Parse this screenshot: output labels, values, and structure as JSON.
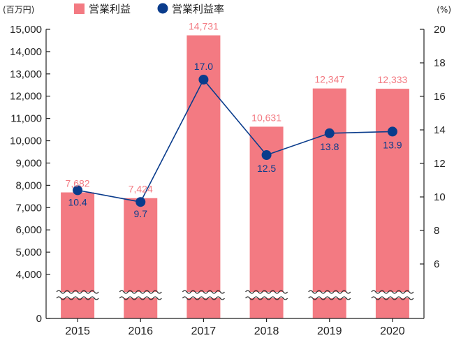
{
  "chart_data": {
    "type": "bar",
    "categories": [
      "2015",
      "2016",
      "2017",
      "2018",
      "2019",
      "2020"
    ],
    "series": [
      {
        "name": "営業利益",
        "type": "bar",
        "axis": "left",
        "values": [
          7682,
          7424,
          14731,
          10631,
          12347,
          12333
        ],
        "labels": [
          "7,682",
          "7,424",
          "14,731",
          "10,631",
          "12,347",
          "12,333"
        ]
      },
      {
        "name": "営業利益率",
        "type": "line",
        "axis": "right",
        "values": [
          10.4,
          9.7,
          17.0,
          12.5,
          13.8,
          13.9
        ],
        "labels": [
          "10.4",
          "9.7",
          "17.0",
          "12.5",
          "13.8",
          "13.9"
        ]
      }
    ],
    "y_left": {
      "unit": "(百万円)",
      "ticks": [
        0,
        4000,
        5000,
        6000,
        7000,
        8000,
        9000,
        10000,
        11000,
        12000,
        13000,
        14000,
        15000
      ],
      "tick_labels": [
        "0",
        "4,000",
        "5,000",
        "6,000",
        "7,000",
        "8,000",
        "9,000",
        "10,000",
        "11,000",
        "12,000",
        "13,000",
        "14,000",
        "15,000"
      ],
      "axis_break": true
    },
    "y_right": {
      "unit": "(%)",
      "ticks": [
        6,
        8,
        10,
        12,
        14,
        16,
        18,
        20
      ],
      "tick_labels": [
        "6",
        "8",
        "10",
        "12",
        "14",
        "16",
        "18",
        "20"
      ],
      "axis_break": true
    },
    "legend_position": "top-left",
    "grid": false
  },
  "colors": {
    "bar": "#f37a82",
    "line": "#0a3c8c",
    "bar_label": "#f37a82",
    "rate_label": "#0a3c8c",
    "axis": "#222222"
  }
}
